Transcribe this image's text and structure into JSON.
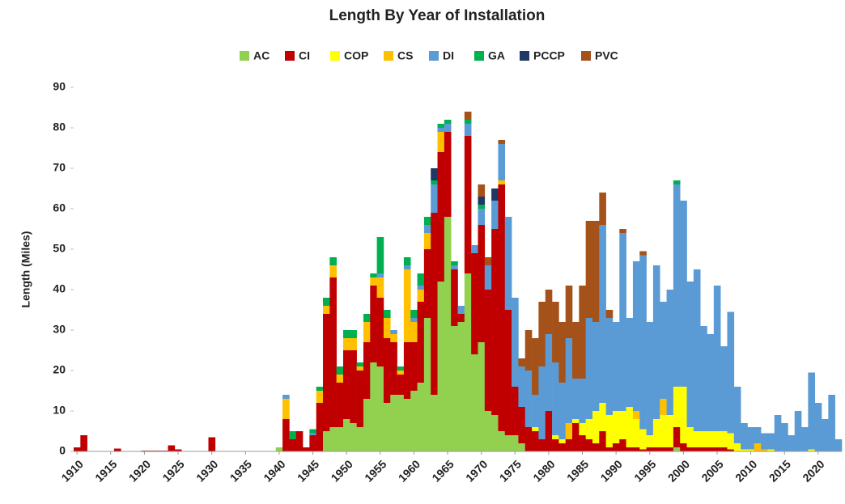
{
  "chart_data": {
    "type": "stacked_bar",
    "title": "Length By Year of Installation",
    "y_label": "Length (Miles)",
    "x": [
      1910,
      1911,
      1912,
      1913,
      1914,
      1915,
      1916,
      1917,
      1918,
      1919,
      1920,
      1921,
      1922,
      1923,
      1924,
      1925,
      1926,
      1927,
      1928,
      1929,
      1930,
      1931,
      1932,
      1933,
      1934,
      1935,
      1936,
      1937,
      1938,
      1939,
      1940,
      1941,
      1942,
      1943,
      1944,
      1945,
      1946,
      1947,
      1948,
      1949,
      1950,
      1951,
      1952,
      1953,
      1954,
      1955,
      1956,
      1957,
      1958,
      1959,
      1960,
      1961,
      1962,
      1963,
      1964,
      1965,
      1966,
      1967,
      1968,
      1969,
      1970,
      1971,
      1972,
      1973,
      1974,
      1975,
      1976,
      1977,
      1978,
      1979,
      1980,
      1981,
      1982,
      1983,
      1984,
      1985,
      1986,
      1987,
      1988,
      1989,
      1990,
      1991,
      1992,
      1993,
      1994,
      1995,
      1996,
      1997,
      1998,
      1999,
      2000,
      2001,
      2002,
      2003,
      2004,
      2005,
      2006,
      2007,
      2008,
      2009,
      2010,
      2011,
      2012,
      2013,
      2014,
      2015,
      2016,
      2017,
      2018,
      2019,
      2020,
      2021,
      2022,
      2023
    ],
    "xlim": [
      1909.5,
      2023.5
    ],
    "xticks": [
      1910,
      1915,
      1920,
      1925,
      1930,
      1935,
      1940,
      1945,
      1950,
      1955,
      1960,
      1965,
      1970,
      1975,
      1980,
      1985,
      1990,
      1995,
      2000,
      2005,
      2010,
      2015,
      2020
    ],
    "ylim": [
      0,
      90
    ],
    "yticks": [
      0,
      10,
      20,
      30,
      40,
      50,
      60,
      70,
      80,
      90
    ],
    "grid": false,
    "legend": "top",
    "series": [
      {
        "name": "AC",
        "color": "#92d050",
        "values": [
          0,
          0,
          0,
          0,
          0,
          0,
          0,
          0,
          0,
          0,
          0,
          0,
          0,
          0,
          0,
          0,
          0,
          0,
          0,
          0,
          0,
          0,
          0,
          0,
          0,
          0,
          0,
          0,
          0,
          0,
          1,
          0,
          0,
          0,
          0,
          0,
          0,
          5,
          6,
          6,
          8,
          7,
          6,
          13,
          22,
          21,
          12,
          14,
          14,
          13,
          15,
          17,
          33,
          14,
          42,
          58,
          31,
          32,
          44,
          24,
          27,
          10,
          9,
          5,
          4,
          4,
          2,
          0,
          0,
          0,
          0,
          0,
          0,
          0,
          0,
          0,
          0,
          0,
          0,
          0,
          0,
          0,
          0,
          0,
          0,
          0,
          0,
          0,
          0,
          1,
          0,
          0,
          0,
          0,
          0,
          0,
          0,
          0,
          0,
          0,
          0,
          0,
          0,
          0,
          0,
          0,
          0,
          0,
          0,
          0,
          0,
          0,
          0,
          0
        ]
      },
      {
        "name": "CI",
        "color": "#c00000",
        "values": [
          1,
          4,
          0,
          0,
          0,
          0,
          0.7,
          0,
          0,
          0,
          0.2,
          0.2,
          0.2,
          0.2,
          1.5,
          0.5,
          0,
          0,
          0,
          0,
          3.5,
          0,
          0,
          0,
          0,
          0,
          0,
          0,
          0,
          0,
          0,
          8,
          3,
          5,
          1,
          4,
          12,
          29,
          37,
          11,
          17,
          18,
          14,
          14,
          19,
          17,
          16,
          13,
          5,
          14,
          12,
          20,
          17,
          45,
          32,
          21,
          14,
          2,
          34,
          25,
          29,
          30,
          46,
          61,
          31,
          12,
          9,
          6,
          5,
          3,
          10,
          3,
          2,
          3,
          7,
          4,
          3,
          2,
          5,
          1,
          2,
          3,
          1,
          1,
          0.5,
          1,
          1,
          1,
          1,
          5,
          2,
          1,
          1,
          1,
          1,
          1,
          1,
          0.5,
          0,
          0,
          0,
          0,
          0,
          0,
          0,
          0,
          0,
          0,
          0,
          0,
          0,
          0,
          0,
          0
        ]
      },
      {
        "name": "COP",
        "color": "#ffff00",
        "values": [
          0,
          0,
          0,
          0,
          0,
          0,
          0,
          0,
          0,
          0,
          0,
          0,
          0,
          0,
          0,
          0,
          0,
          0,
          0,
          0,
          0,
          0,
          0,
          0,
          0,
          0,
          0,
          0,
          0,
          0,
          0,
          0,
          0,
          0,
          0,
          0,
          0,
          0,
          0,
          0,
          0,
          0,
          0,
          0,
          0,
          0,
          0,
          0,
          0,
          0,
          0,
          0,
          0,
          0,
          0,
          0,
          0,
          0,
          0,
          0,
          0,
          0,
          0,
          0,
          0,
          0,
          0,
          0,
          1,
          0,
          0,
          1,
          1,
          0,
          1,
          3,
          5,
          8,
          7,
          8,
          8,
          7,
          10,
          7,
          5,
          3,
          7,
          8,
          8,
          10,
          14,
          5,
          4,
          4,
          4,
          4,
          4,
          4,
          2,
          0.5,
          0.5,
          0,
          0,
          0.5,
          0,
          0,
          0,
          0,
          0,
          0.5,
          0,
          0,
          0,
          0
        ]
      },
      {
        "name": "CS",
        "color": "#ffc000",
        "values": [
          0,
          0,
          0,
          0,
          0,
          0,
          0,
          0,
          0,
          0,
          0,
          0,
          0,
          0,
          0,
          0,
          0,
          0,
          0,
          0,
          0,
          0,
          0,
          0,
          0,
          0,
          0,
          0,
          0,
          0,
          0,
          5,
          0,
          0,
          0,
          0,
          3,
          2,
          3,
          2,
          3,
          3,
          1,
          5,
          2,
          5,
          5,
          2,
          1,
          18,
          5,
          3,
          4,
          0,
          5,
          0,
          0,
          0,
          0,
          0,
          0,
          0,
          0,
          1,
          0,
          0,
          0,
          0,
          0,
          0,
          0,
          0,
          0,
          4,
          0,
          0,
          0,
          0,
          0,
          0,
          0,
          0,
          0,
          2,
          0,
          0,
          0,
          4,
          0,
          0,
          0,
          0,
          0,
          0,
          0,
          0,
          0,
          0,
          0,
          0,
          0,
          2,
          0.5,
          0,
          0,
          0,
          0,
          0,
          0,
          0,
          0,
          0,
          0,
          0
        ]
      },
      {
        "name": "DI",
        "color": "#5b9bd5",
        "values": [
          0,
          0,
          0,
          0,
          0,
          0,
          0,
          0,
          0,
          0,
          0,
          0,
          0,
          0,
          0,
          0,
          0,
          0,
          0,
          0,
          0,
          0,
          0,
          0,
          0,
          0,
          0,
          0,
          0,
          0,
          0,
          1,
          0,
          0,
          0,
          0.5,
          0,
          0,
          0,
          0,
          0,
          0,
          0,
          0,
          0,
          1,
          0,
          1,
          0,
          1,
          1,
          1,
          2,
          7,
          1,
          2,
          1,
          2,
          3,
          2,
          4,
          6,
          7,
          9,
          23,
          22,
          10,
          14,
          8,
          18,
          19,
          18,
          14,
          21,
          10,
          11,
          25,
          22,
          44,
          24,
          22,
          44,
          22,
          37,
          43,
          28,
          38,
          24,
          31,
          50,
          46,
          36,
          40,
          26,
          24,
          36,
          21,
          30,
          14,
          6.5,
          5.5,
          4,
          4,
          4,
          9,
          7,
          4,
          10,
          6,
          19,
          12,
          8,
          14,
          3
        ]
      },
      {
        "name": "GA",
        "color": "#00b050",
        "values": [
          0,
          0,
          0,
          0,
          0,
          0,
          0,
          0,
          0,
          0,
          0,
          0,
          0,
          0,
          0,
          0,
          0,
          0,
          0,
          0,
          0,
          0,
          0,
          0,
          0,
          0,
          0,
          0,
          0,
          0,
          0,
          0,
          2,
          0,
          0,
          1,
          1,
          2,
          2,
          2,
          2,
          2,
          1,
          2,
          1,
          9,
          2,
          0,
          1,
          2,
          2,
          3,
          2,
          1,
          1,
          1,
          1,
          0,
          1,
          0,
          1,
          0,
          0,
          0,
          0,
          0,
          0,
          0,
          0,
          0,
          0,
          0,
          0,
          0,
          0,
          0,
          0,
          0,
          0,
          0,
          0,
          0,
          0,
          0,
          0,
          0,
          0,
          0,
          0,
          1,
          0,
          0,
          0,
          0,
          0,
          0,
          0,
          0,
          0,
          0,
          0,
          0,
          0,
          0,
          0,
          0,
          0,
          0,
          0,
          0,
          0,
          0,
          0,
          0
        ]
      },
      {
        "name": "PCCP",
        "color": "#1f3864",
        "values": [
          0,
          0,
          0,
          0,
          0,
          0,
          0,
          0,
          0,
          0,
          0,
          0,
          0,
          0,
          0,
          0,
          0,
          0,
          0,
          0,
          0,
          0,
          0,
          0,
          0,
          0,
          0,
          0,
          0,
          0,
          0,
          0,
          0,
          0,
          0,
          0,
          0,
          0,
          0,
          0,
          0,
          0,
          0,
          0,
          0,
          0,
          0,
          0,
          0,
          0,
          0,
          0,
          0,
          3,
          0,
          0,
          0,
          0,
          0,
          0,
          2,
          0,
          3,
          0,
          0,
          0,
          0,
          0,
          0,
          0,
          0,
          0,
          0,
          0,
          0,
          0,
          0,
          0,
          0,
          0,
          0,
          0,
          0,
          0,
          0,
          0,
          0,
          0,
          0,
          0,
          0,
          0,
          0,
          0,
          0,
          0,
          0,
          0,
          0,
          0,
          0,
          0,
          0,
          0,
          0,
          0,
          0,
          0,
          0,
          0,
          0,
          0,
          0,
          0
        ]
      },
      {
        "name": "PVC",
        "color": "#a5521a",
        "values": [
          0,
          0,
          0,
          0,
          0,
          0,
          0,
          0,
          0,
          0,
          0,
          0,
          0,
          0,
          0,
          0,
          0,
          0,
          0,
          0,
          0,
          0,
          0,
          0,
          0,
          0,
          0,
          0,
          0,
          0,
          0,
          0,
          0,
          0,
          0,
          0,
          0,
          0,
          0,
          0,
          0,
          0,
          0,
          0,
          0,
          0,
          0,
          0,
          0,
          0,
          0,
          0,
          0,
          0,
          0,
          0,
          0,
          0,
          2,
          0,
          3,
          2,
          0,
          1,
          0,
          0,
          2,
          10,
          14,
          16,
          11,
          15,
          15,
          13,
          14,
          23,
          24,
          25,
          8,
          2,
          0,
          1,
          0,
          0,
          1,
          0,
          0,
          0,
          0,
          0,
          0,
          0,
          0,
          0,
          0,
          0,
          0,
          0,
          0,
          0,
          0,
          0,
          0,
          0,
          0,
          0,
          0,
          0,
          0,
          0,
          0,
          0,
          0,
          0
        ]
      }
    ]
  }
}
